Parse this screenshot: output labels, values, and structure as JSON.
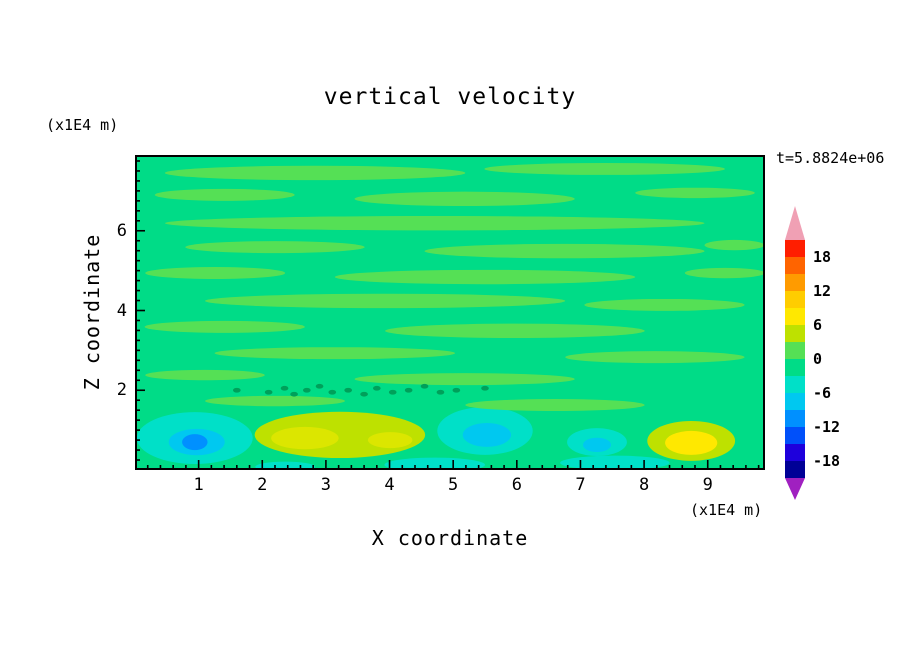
{
  "chart_data": {
    "type": "heatmap",
    "title": "vertical velocity",
    "time_annotation": "t=5.8824e+06",
    "xlabel": "X coordinate",
    "ylabel": "Z coordinate",
    "x_unit": "(x1E4 m)",
    "y_unit": "(x1E4 m)",
    "xlim": [
      0,
      9.9
    ],
    "ylim": [
      0,
      7.9
    ],
    "x_ticks": [
      1,
      2,
      3,
      4,
      5,
      6,
      7,
      8,
      9
    ],
    "y_ticks": [
      2,
      4,
      6
    ],
    "x_minor_step": 0.2,
    "y_minor_step": 0.25,
    "grid": false,
    "contour_interval": 3,
    "levels": [
      -21,
      -18,
      -15,
      -12,
      -9,
      -6,
      -3,
      0,
      3,
      6,
      9,
      12,
      15,
      18,
      21
    ],
    "colorbar": {
      "position": "right",
      "labels": [
        "18",
        "12",
        "6",
        "0",
        "-6",
        "-12",
        "-18"
      ],
      "cell_colors": [
        "#FF1E00",
        "#FF6400",
        "#FF9B00",
        "#FFCD00",
        "#FFE800",
        "#BEE100",
        "#55E055",
        "#00DC87",
        "#00E0C8",
        "#00C8F0",
        "#0090FF",
        "#0050FA",
        "#1E00DC",
        "#000096"
      ],
      "over_color": "#F0A0B4",
      "under_color": "#A020C0"
    },
    "field": {
      "background_color": "#00DC87",
      "background_level": "-3..0",
      "streak_color": "#55E055",
      "streak_level": "0..3",
      "streaks": [
        {
          "x": 2.83,
          "z": 7.45,
          "xr": 2.36,
          "zr": 0.18
        },
        {
          "x": 7.38,
          "z": 7.55,
          "xr": 1.89,
          "zr": 0.15
        },
        {
          "x": 1.41,
          "z": 6.9,
          "xr": 1.1,
          "zr": 0.15
        },
        {
          "x": 5.18,
          "z": 6.8,
          "xr": 1.73,
          "zr": 0.18
        },
        {
          "x": 8.8,
          "z": 6.95,
          "xr": 0.94,
          "zr": 0.13
        },
        {
          "x": 4.71,
          "z": 6.19,
          "xr": 4.24,
          "zr": 0.18
        },
        {
          "x": 2.2,
          "z": 5.59,
          "xr": 1.41,
          "zr": 0.15
        },
        {
          "x": 6.75,
          "z": 5.49,
          "xr": 2.2,
          "zr": 0.18
        },
        {
          "x": 9.42,
          "z": 5.64,
          "xr": 0.47,
          "zr": 0.13
        },
        {
          "x": 1.26,
          "z": 4.94,
          "xr": 1.1,
          "zr": 0.15
        },
        {
          "x": 5.5,
          "z": 4.84,
          "xr": 2.36,
          "zr": 0.18
        },
        {
          "x": 9.27,
          "z": 4.94,
          "xr": 0.63,
          "zr": 0.13
        },
        {
          "x": 3.93,
          "z": 4.24,
          "xr": 2.83,
          "zr": 0.18
        },
        {
          "x": 8.32,
          "z": 4.14,
          "xr": 1.26,
          "zr": 0.15
        },
        {
          "x": 1.41,
          "z": 3.59,
          "xr": 1.26,
          "zr": 0.15
        },
        {
          "x": 5.97,
          "z": 3.49,
          "xr": 2.04,
          "zr": 0.18
        },
        {
          "x": 3.14,
          "z": 2.93,
          "xr": 1.89,
          "zr": 0.15
        },
        {
          "x": 8.17,
          "z": 2.83,
          "xr": 1.41,
          "zr": 0.15
        },
        {
          "x": 1.1,
          "z": 2.38,
          "xr": 0.94,
          "zr": 0.13
        },
        {
          "x": 5.18,
          "z": 2.28,
          "xr": 1.73,
          "zr": 0.15
        }
      ],
      "features": [
        {
          "x": 0.94,
          "z": 0.8,
          "xr": 0.91,
          "zr": 0.65,
          "color": "#00E0C8",
          "level": "-6..-3"
        },
        {
          "x": 0.97,
          "z": 0.7,
          "xr": 0.44,
          "zr": 0.33,
          "color": "#00C8F0",
          "level": "-9..-6"
        },
        {
          "x": 0.94,
          "z": 0.7,
          "xr": 0.2,
          "zr": 0.2,
          "color": "#0090FF",
          "level": "-12..-9"
        },
        {
          "x": 3.22,
          "z": 0.88,
          "xr": 1.34,
          "zr": 0.58,
          "color": "#BEE100",
          "level": "3..6"
        },
        {
          "x": 2.67,
          "z": 0.8,
          "xr": 0.53,
          "zr": 0.28,
          "color": "#DCE600",
          "level": "6..9"
        },
        {
          "x": 4.01,
          "z": 0.75,
          "xr": 0.35,
          "zr": 0.2,
          "color": "#DCE600",
          "level": "6..9"
        },
        {
          "x": 5.5,
          "z": 0.98,
          "xr": 0.75,
          "zr": 0.6,
          "color": "#00E0C8",
          "level": "-6..-3"
        },
        {
          "x": 5.53,
          "z": 0.88,
          "xr": 0.38,
          "zr": 0.3,
          "color": "#00C8F0",
          "level": "-9..-6"
        },
        {
          "x": 7.26,
          "z": 0.7,
          "xr": 0.47,
          "zr": 0.35,
          "color": "#00E0C8",
          "level": "-6..-3"
        },
        {
          "x": 7.26,
          "z": 0.63,
          "xr": 0.22,
          "zr": 0.18,
          "color": "#00C8F0",
          "level": "-9..-6"
        },
        {
          "x": 8.74,
          "z": 0.73,
          "xr": 0.69,
          "zr": 0.5,
          "color": "#BEE100",
          "level": "3..6"
        },
        {
          "x": 8.74,
          "z": 0.68,
          "xr": 0.41,
          "zr": 0.3,
          "color": "#FFE800",
          "level": "6..9"
        },
        {
          "x": 4.71,
          "z": 0.13,
          "xr": 0.79,
          "zr": 0.18,
          "color": "#00E0C8",
          "level": "-6..-3"
        },
        {
          "x": 7.54,
          "z": 0.18,
          "xr": 0.86,
          "zr": 0.18,
          "color": "#00E0C8",
          "level": "-6..-3"
        },
        {
          "x": 2.36,
          "z": 0.08,
          "xr": 0.47,
          "zr": 0.13,
          "color": "#00E0C8",
          "level": "-6..-3"
        },
        {
          "x": 6.6,
          "z": 1.63,
          "xr": 1.41,
          "zr": 0.15,
          "color": "#55E055",
          "level": "0..3"
        },
        {
          "x": 2.2,
          "z": 1.73,
          "xr": 1.1,
          "zr": 0.13,
          "color": "#55E055",
          "level": "0..3"
        }
      ],
      "specks": {
        "color": "#00A05A",
        "r": 0.06,
        "points": [
          {
            "x": 1.6,
            "z": 2.0
          },
          {
            "x": 2.1,
            "z": 1.95
          },
          {
            "x": 2.35,
            "z": 2.05
          },
          {
            "x": 2.5,
            "z": 1.9
          },
          {
            "x": 2.7,
            "z": 2.0
          },
          {
            "x": 2.9,
            "z": 2.1
          },
          {
            "x": 3.1,
            "z": 1.95
          },
          {
            "x": 3.35,
            "z": 2.0
          },
          {
            "x": 3.6,
            "z": 1.9
          },
          {
            "x": 3.8,
            "z": 2.05
          },
          {
            "x": 4.05,
            "z": 1.95
          },
          {
            "x": 4.3,
            "z": 2.0
          },
          {
            "x": 4.55,
            "z": 2.1
          },
          {
            "x": 4.8,
            "z": 1.95
          },
          {
            "x": 5.05,
            "z": 2.0
          },
          {
            "x": 5.5,
            "z": 2.05
          }
        ]
      }
    }
  }
}
